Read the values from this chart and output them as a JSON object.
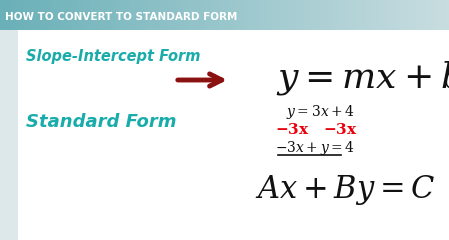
{
  "title": "HOW TO CONVERT TO STANDARD FORM",
  "title_bg_left": "#6ab0b8",
  "title_bg_right": "#c8dde0",
  "title_color": "#ffffff",
  "bg_color": "#dde8ea",
  "panel_color": "#ffffff",
  "teal_color": "#1aabab",
  "dark_red": "#8b1010",
  "red_color": "#e8000a",
  "black": "#111111",
  "label_slope_intercept": "Slope-Intercept Form",
  "label_standard": "Standard Form",
  "title_fontsize": 7.5,
  "slope_label_fontsize": 10.5,
  "standard_label_fontsize": 13,
  "formula_main_fontsize": 26,
  "example_fontsize": 10,
  "formula_standard_fontsize": 22
}
